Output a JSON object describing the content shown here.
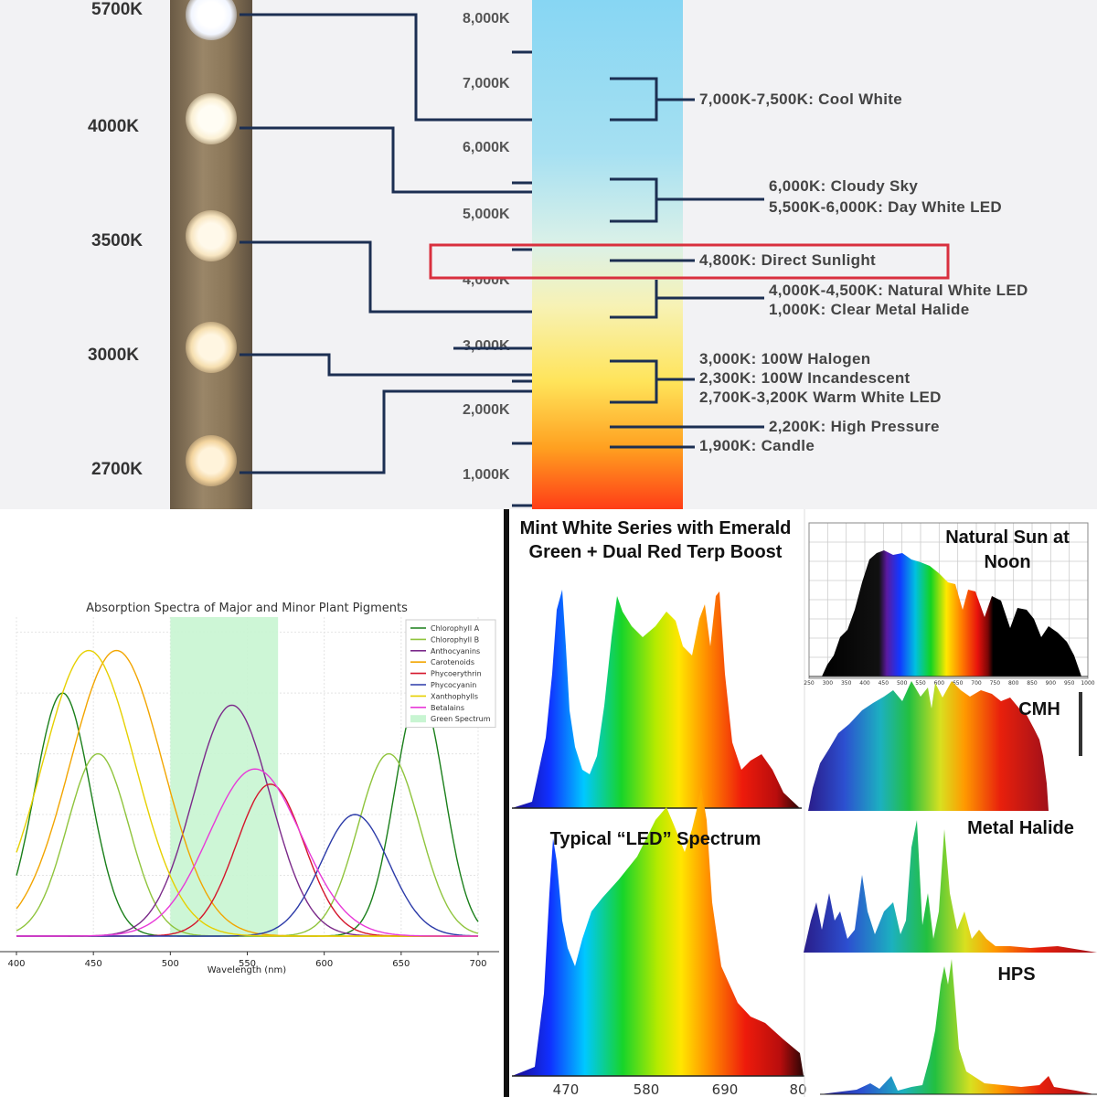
{
  "kelvin_chart": {
    "strip_labels": [
      "5700K",
      "4000K",
      "3500K",
      "3000K",
      "2700K"
    ],
    "bar_ticks": [
      "8,000K",
      "7,000K",
      "6,000K",
      "5,000K",
      "4,000K",
      "3,000K",
      "2,000K",
      "1,000K"
    ],
    "annotations": [
      "7,000K-7,500K: Cool White",
      "6,000K: Cloudy Sky",
      "5,500K-6,000K: Day White LED",
      "4,800K: Direct Sunlight",
      "4,000K-4,500K: Natural White LED",
      "1,000K: Clear Metal Halide",
      "3,000K: 100W Halogen",
      "2,300K: 100W Incandescent",
      "2,700K-3,200K Warm White LED",
      "2,200K: High Pressure",
      "1,900K: Candle"
    ],
    "highlight_color": "#d9303e"
  },
  "chart_data": {
    "type": "line",
    "title": "Absorption Spectra of Major and Minor Plant Pigments",
    "xlabel": "Wavelength (nm)",
    "ylabel": "",
    "xlim": [
      400,
      700
    ],
    "ylim": [
      0,
      1.05
    ],
    "xticks": [
      400,
      450,
      500,
      550,
      600,
      650,
      700
    ],
    "shaded_region": {
      "label": "Green Spectrum",
      "x": [
        500,
        570
      ],
      "color": "#c8f5d2"
    },
    "series": [
      {
        "name": "Chlorophyll A",
        "color": "#1a7f1a",
        "peaks": [
          {
            "center": 430,
            "height": 0.8,
            "width": 18
          },
          {
            "center": 662,
            "height": 0.8,
            "width": 16
          }
        ]
      },
      {
        "name": "Chlorophyll B",
        "color": "#8fc43c",
        "peaks": [
          {
            "center": 453,
            "height": 0.6,
            "width": 20
          },
          {
            "center": 642,
            "height": 0.6,
            "width": 20
          }
        ]
      },
      {
        "name": "Anthocyanins",
        "color": "#7b2a8a",
        "peaks": [
          {
            "center": 540,
            "height": 0.76,
            "width": 25
          }
        ]
      },
      {
        "name": "Carotenoids",
        "color": "#f2a500",
        "peaks": [
          {
            "center": 465,
            "height": 0.94,
            "width": 30
          }
        ]
      },
      {
        "name": "Phycoerythrin",
        "color": "#d4152b",
        "peaks": [
          {
            "center": 565,
            "height": 0.5,
            "width": 22
          }
        ]
      },
      {
        "name": "Phycocyanin",
        "color": "#2b3aa8",
        "peaks": [
          {
            "center": 620,
            "height": 0.4,
            "width": 22
          }
        ]
      },
      {
        "name": "Xanthophylls",
        "color": "#e6d000",
        "peaks": [
          {
            "center": 447,
            "height": 0.94,
            "width": 30
          }
        ]
      },
      {
        "name": "Betalains",
        "color": "#e83ad8",
        "peaks": [
          {
            "center": 555,
            "height": 0.55,
            "width": 30
          }
        ]
      }
    ],
    "legend_position": "top-right"
  },
  "spectra": {
    "mint_title": "Mint White Series with Emerald Green + Dual Red Terp Boost",
    "led_title": "Typical “LED” Spectrum",
    "led_xticks": [
      "470",
      "580",
      "690",
      "80"
    ],
    "sun_title": "Natural Sun at Noon",
    "sun_xticks": [
      "250",
      "300",
      "350",
      "400",
      "450",
      "500",
      "550",
      "600",
      "650",
      "700",
      "750",
      "800",
      "850",
      "900",
      "950",
      "1000"
    ],
    "cmh_title": "CMH",
    "mh_title": "Metal Halide",
    "hps_title": "HPS"
  }
}
